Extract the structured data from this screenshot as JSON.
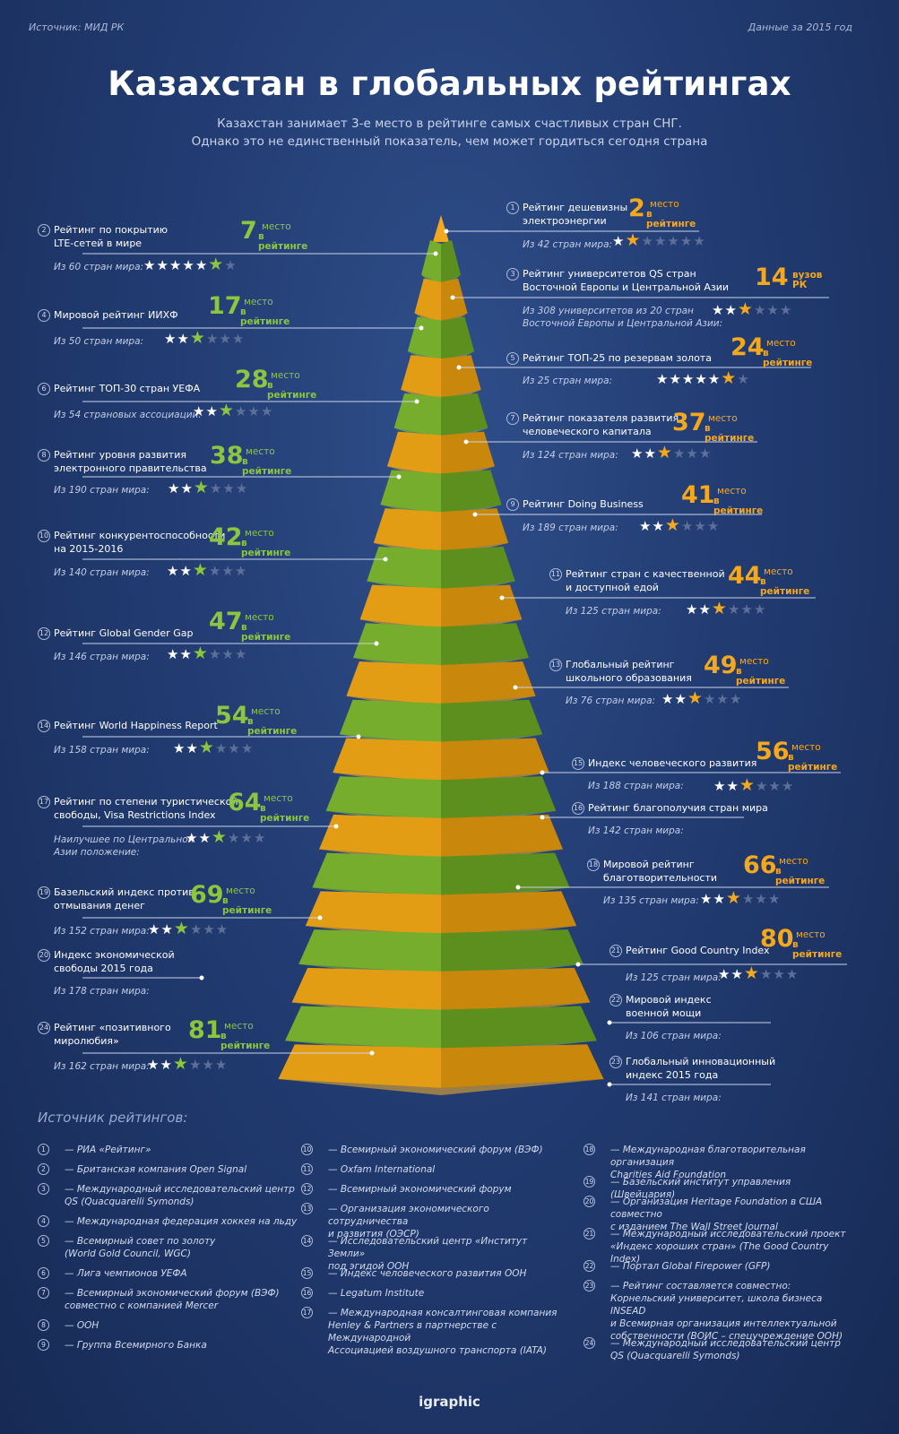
{
  "header": {
    "source": "Источник: МИД РК",
    "date": "Данные за 2015 год",
    "title": "Казахстан в глобальных рейтингах",
    "subtitle_line1": "Казахстан занимает 3-е место в рейтинге самых счастливых стран СНГ.",
    "subtitle_line2": "Однако это не единственный показатель, чем может гордиться сегодня страна"
  },
  "colors": {
    "background": "#223c72",
    "green": "#8cc63f",
    "orange": "#f4a81d",
    "star_dim": "#5e6f98"
  },
  "place_label": "место",
  "place_label2": "в рейтинге",
  "ratings": [
    {
      "num": "1",
      "name": [
        "Рейтинг дешевизны",
        "электроэнергии"
      ],
      "rank": "2",
      "sub": [
        "Из 42 стран мира:"
      ],
      "stars_filled": 2,
      "stars_total": 7,
      "color": "orange"
    },
    {
      "num": "2",
      "name": [
        "Рейтинг по покрытию",
        "LTE-сетей в мире"
      ],
      "rank": "7",
      "sub": [
        "Из 60 стран мира:"
      ],
      "stars_filled": 6,
      "stars_total": 7,
      "color": "green"
    },
    {
      "num": "3",
      "name": [
        "Рейтинг университетов QS стран",
        "Восточной Европы и Центральной Азии"
      ],
      "rank": "14",
      "rank_label": "вузов РК",
      "sub": [
        "Из 308 университетов из 20 стран",
        "Восточной Европы и Центральной Азии:"
      ],
      "stars_filled": 3,
      "stars_total": 6,
      "color": "orange"
    },
    {
      "num": "4",
      "name": [
        "Мировой рейтинг ИИХФ"
      ],
      "rank": "17",
      "sub": [
        "Из 50 стран мира:"
      ],
      "stars_filled": 3,
      "stars_total": 6,
      "color": "green"
    },
    {
      "num": "5",
      "name": [
        "Рейтинг ТОП-25 по резервам золота"
      ],
      "rank": "24",
      "sub": [
        "Из 25 стран мира:"
      ],
      "stars_filled": 6,
      "stars_total": 7,
      "color": "orange"
    },
    {
      "num": "6",
      "name": [
        "Рейтинг ТОП-30 стран УЕФА"
      ],
      "rank": "28",
      "sub": [
        "Из 54 страновых ассоциаций:"
      ],
      "stars_filled": 3,
      "stars_total": 6,
      "color": "green"
    },
    {
      "num": "7",
      "name": [
        "Рейтинг показателя развития",
        "человеческого капитала"
      ],
      "rank": "37",
      "sub": [
        "Из 124 стран мира:"
      ],
      "stars_filled": 3,
      "stars_total": 6,
      "color": "orange"
    },
    {
      "num": "8",
      "name": [
        "Рейтинг уровня развития",
        "электронного правительства"
      ],
      "rank": "38",
      "sub": [
        "Из 190 стран мира:"
      ],
      "stars_filled": 3,
      "stars_total": 6,
      "color": "green"
    },
    {
      "num": "9",
      "name": [
        "Рейтинг Doing Business"
      ],
      "rank": "41",
      "sub": [
        "Из 189 стран мира:"
      ],
      "stars_filled": 3,
      "stars_total": 6,
      "color": "orange"
    },
    {
      "num": "10",
      "name": [
        "Рейтинг конкурентоспособности",
        "на 2015-2016"
      ],
      "rank": "42",
      "sub": [
        "Из 140 стран мира:"
      ],
      "stars_filled": 3,
      "stars_total": 6,
      "color": "green"
    },
    {
      "num": "11",
      "name": [
        "Рейтинг стран с качественной",
        "и доступной едой"
      ],
      "rank": "44",
      "sub": [
        "Из 125 стран мира:"
      ],
      "stars_filled": 3,
      "stars_total": 6,
      "color": "orange"
    },
    {
      "num": "12",
      "name": [
        "Рейтинг Global Gender Gap"
      ],
      "rank": "47",
      "sub": [
        "Из 146 стран мира:"
      ],
      "stars_filled": 3,
      "stars_total": 6,
      "color": "green"
    },
    {
      "num": "13",
      "name": [
        "Глобальный рейтинг",
        "школьного образования"
      ],
      "rank": "49",
      "sub": [
        "Из 76 стран мира:"
      ],
      "stars_filled": 3,
      "stars_total": 6,
      "color": "orange"
    },
    {
      "num": "14",
      "name": [
        "Рейтинг World Happiness Report"
      ],
      "rank": "54",
      "sub": [
        "Из 158 стран мира:"
      ],
      "stars_filled": 3,
      "stars_total": 6,
      "color": "green"
    },
    {
      "num": "15",
      "name": [
        "Индекс человеческого развития"
      ],
      "rank": "56",
      "sub": [
        "Из 188 стран мира:"
      ],
      "stars_filled": 3,
      "stars_total": 6,
      "color": "orange"
    },
    {
      "num": "16",
      "name": [
        "Рейтинг благополучия стран мира"
      ],
      "rank": "",
      "sub": [
        "Из 142 стран мира:"
      ],
      "stars_filled": 0,
      "stars_total": 0,
      "color": "orange"
    },
    {
      "num": "17",
      "name": [
        "Рейтинг по степени туристической",
        "свободы, Visa Restrictions Index"
      ],
      "rank": "64",
      "sub": [
        "Наилучшее по Центральной",
        "Азии положение:"
      ],
      "stars_filled": 3,
      "stars_total": 6,
      "color": "green"
    },
    {
      "num": "18",
      "name": [
        "Мировой рейтинг",
        "благотворительности"
      ],
      "rank": "66",
      "sub": [
        "Из 135 стран мира:"
      ],
      "stars_filled": 3,
      "stars_total": 6,
      "color": "orange"
    },
    {
      "num": "19",
      "name": [
        "Базельский индекс против",
        "отмывания денег"
      ],
      "rank": "69",
      "sub": [
        "Из 152 стран мира:"
      ],
      "stars_filled": 3,
      "stars_total": 6,
      "color": "green"
    },
    {
      "num": "20",
      "name": [
        "Индекс экономической",
        "свободы 2015 года"
      ],
      "rank": "",
      "sub": [
        "Из 178 стран мира:"
      ],
      "stars_filled": 0,
      "stars_total": 0,
      "color": "green"
    },
    {
      "num": "21",
      "name": [
        "Рейтинг Good Country Index"
      ],
      "rank": "80",
      "sub": [
        "Из 125 стран мира:"
      ],
      "stars_filled": 3,
      "stars_total": 6,
      "color": "orange"
    },
    {
      "num": "22",
      "name": [
        "Мировой индекс",
        "военной мощи"
      ],
      "rank": "",
      "sub": [
        "Из 106 стран мира:"
      ],
      "stars_filled": 0,
      "stars_total": 0,
      "color": "orange"
    },
    {
      "num": "23",
      "name": [
        "Глобальный инновационный",
        "индекс 2015 года"
      ],
      "rank": "",
      "sub": [
        "Из 141 стран мира:"
      ],
      "stars_filled": 0,
      "stars_total": 0,
      "color": "orange"
    },
    {
      "num": "24",
      "name": [
        "Рейтинг «позитивного",
        "миролюбия»"
      ],
      "rank": "81",
      "sub": [
        "Из 162 стран мира:"
      ],
      "stars_filled": 3,
      "stars_total": 6,
      "color": "green"
    }
  ],
  "sources_heading": "Источник рейтингов:",
  "sources": [
    {
      "num": "1",
      "text": [
        "— РИА «Рейтинг»"
      ]
    },
    {
      "num": "2",
      "text": [
        "— Британская компания Open Signal"
      ]
    },
    {
      "num": "3",
      "text": [
        "— Международный исследовательский центр",
        "QS (Quacquarelli Symonds)"
      ]
    },
    {
      "num": "4",
      "text": [
        "— Международная федерация хоккея на льду"
      ]
    },
    {
      "num": "5",
      "text": [
        "— Всемирный совет по золоту",
        "(World Gold Council, WGC)"
      ]
    },
    {
      "num": "6",
      "text": [
        "— Лига чемпионов УЕФА"
      ]
    },
    {
      "num": "7",
      "text": [
        "— Всемирный экономический форум (ВЭФ)",
        "совместно с компанией Mercer"
      ]
    },
    {
      "num": "8",
      "text": [
        "— ООН"
      ]
    },
    {
      "num": "9",
      "text": [
        "— Группа Всемирного Банка"
      ]
    },
    {
      "num": "10",
      "text": [
        "— Всемирный экономический форум (ВЭФ)"
      ]
    },
    {
      "num": "11",
      "text": [
        "— Oxfam International"
      ]
    },
    {
      "num": "12",
      "text": [
        "— Всемирный экономический форум"
      ]
    },
    {
      "num": "13",
      "text": [
        "— Организация экономического сотрудничества",
        "и развития (ОЭСР)"
      ]
    },
    {
      "num": "14",
      "text": [
        "— Исследовательский центр «Институт Земли»",
        "под эгидой ООН"
      ]
    },
    {
      "num": "15",
      "text": [
        "— Индекс человеческого развития ООН"
      ]
    },
    {
      "num": "16",
      "text": [
        "— Legatum Institute"
      ]
    },
    {
      "num": "17",
      "text": [
        "— Международная консалтинговая компания",
        "Henley & Partners в партнерстве с Международной",
        "Ассоциацией воздушного транспорта (IATA)"
      ]
    },
    {
      "num": "18",
      "text": [
        "— Международная благотворительная организация",
        "Charities Aid Foundation"
      ]
    },
    {
      "num": "19",
      "text": [
        "— Базельский институт управления (Швейцария)"
      ]
    },
    {
      "num": "20",
      "text": [
        "— Организация Heritage Foundation в США совместно",
        "с изданием The Wall Street Journal"
      ]
    },
    {
      "num": "21",
      "text": [
        "— Международный исследовательский проект",
        "«Индекс хороших стран» (The Good Country Index)"
      ]
    },
    {
      "num": "22",
      "text": [
        "— Портал Global Firepower (GFP)"
      ]
    },
    {
      "num": "23",
      "text": [
        "— Рейтинг составляется совместно:",
        "Корнельский университет, школа бизнеса INSEAD",
        "и Всемирная организация интеллектуальной",
        "собственности (ВОИС – спецучреждение ООН)"
      ]
    },
    {
      "num": "24",
      "text": [
        "— Международный исследовательский центр",
        "QS (Quacquarelli Symonds)"
      ]
    }
  ],
  "logo": "igraphic"
}
